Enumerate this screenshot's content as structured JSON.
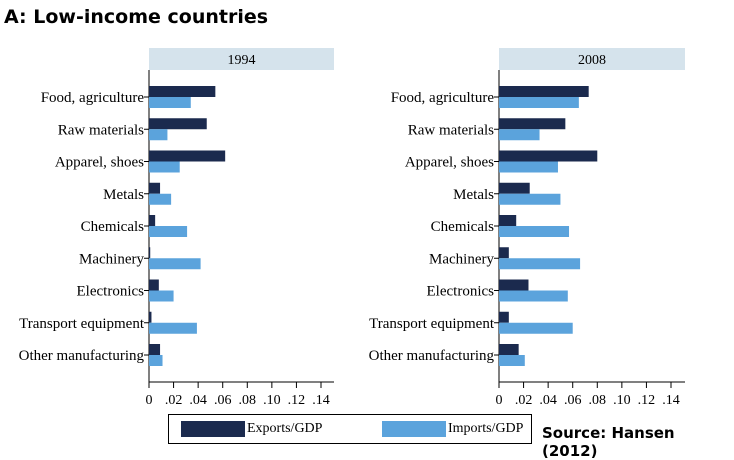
{
  "title": "A: Low-income countries",
  "source": "Source: Hansen (2012)",
  "colors": {
    "exports": "#1b2a4e",
    "imports": "#5ba3dc",
    "strip": "#d5e3ec"
  },
  "legend": {
    "exports_label": "Exports/GDP",
    "imports_label": "Imports/GDP"
  },
  "chart_data": {
    "type": "bar",
    "orientation": "horizontal",
    "categories": [
      "Food, agriculture",
      "Raw materials",
      "Apparel, shoes",
      "Metals",
      "Chemicals",
      "Machinery",
      "Electronics",
      "Transport equipment",
      "Other manufacturing"
    ],
    "xlim": [
      0,
      0.15
    ],
    "xticks": [
      0,
      0.02,
      0.04,
      0.06,
      0.08,
      0.1,
      0.12,
      0.14
    ],
    "xtick_labels": [
      "0",
      ".02",
      ".04",
      ".06",
      ".08",
      ".10",
      ".12",
      ".14"
    ],
    "legend_position": "bottom",
    "panels": [
      {
        "title": "1994",
        "series": [
          {
            "name": "Exports/GDP",
            "values": [
              0.054,
              0.047,
              0.062,
              0.009,
              0.005,
              0.001,
              0.008,
              0.002,
              0.009
            ]
          },
          {
            "name": "Imports/GDP",
            "values": [
              0.034,
              0.015,
              0.025,
              0.018,
              0.031,
              0.042,
              0.02,
              0.039,
              0.011
            ]
          }
        ]
      },
      {
        "title": "2008",
        "series": [
          {
            "name": "Exports/GDP",
            "values": [
              0.073,
              0.054,
              0.08,
              0.025,
              0.014,
              0.008,
              0.024,
              0.008,
              0.016
            ]
          },
          {
            "name": "Imports/GDP",
            "values": [
              0.065,
              0.033,
              0.048,
              0.05,
              0.057,
              0.066,
              0.056,
              0.06,
              0.021
            ]
          }
        ]
      }
    ]
  }
}
